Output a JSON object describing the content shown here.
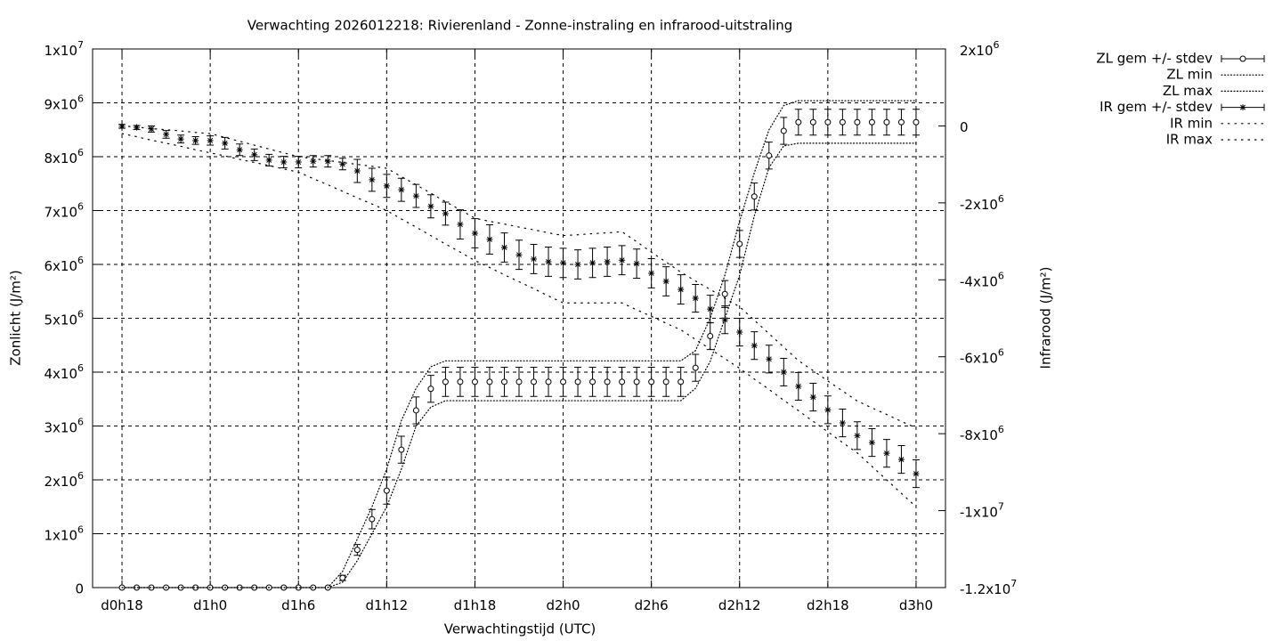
{
  "chart_data": {
    "type": "line",
    "title": "Verwachting 2026012218: Rivierenland - Zonne-instraling en infrarood-uitstraling",
    "xlabel": "Verwachtingstijd (UTC)",
    "ylabel": "Zonlicht (J/m²)",
    "y2label": "Infrarood (J/m²)",
    "grid": true,
    "legend": "outside-right",
    "xlim": [
      16,
      74
    ],
    "xticks": [
      {
        "value": 18,
        "label": "d0h18"
      },
      {
        "value": 24,
        "label": "d1h0"
      },
      {
        "value": 30,
        "label": "d1h6"
      },
      {
        "value": 36,
        "label": "d1h12"
      },
      {
        "value": 42,
        "label": "d1h18"
      },
      {
        "value": 48,
        "label": "d2h0"
      },
      {
        "value": 54,
        "label": "d2h6"
      },
      {
        "value": 60,
        "label": "d2h12"
      },
      {
        "value": 66,
        "label": "d2h18"
      },
      {
        "value": 72,
        "label": "d3h0"
      }
    ],
    "ylim": [
      0,
      10000000.0
    ],
    "yticks": [
      0,
      {
        "value": 1000000.0,
        "label": "1x10",
        "sup": "6"
      },
      {
        "value": 2000000.0,
        "label": "2x10",
        "sup": "6"
      },
      {
        "value": 3000000.0,
        "label": "3x10",
        "sup": "6"
      },
      {
        "value": 4000000.0,
        "label": "4x10",
        "sup": "6"
      },
      {
        "value": 5000000.0,
        "label": "5x10",
        "sup": "6"
      },
      {
        "value": 6000000.0,
        "label": "6x10",
        "sup": "6"
      },
      {
        "value": 7000000.0,
        "label": "7x10",
        "sup": "6"
      },
      {
        "value": 8000000.0,
        "label": "8x10",
        "sup": "6"
      },
      {
        "value": 9000000.0,
        "label": "9x10",
        "sup": "6"
      },
      {
        "value": 10000000.0,
        "label": "1x10",
        "sup": "7"
      }
    ],
    "y2lim": [
      -12000000.0,
      2000000.0
    ],
    "y2ticks": [
      {
        "value": 2000000.0,
        "label": "2x10",
        "sup": "6"
      },
      0,
      {
        "value": -2000000.0,
        "label": "-2x10",
        "sup": "6"
      },
      {
        "value": -4000000.0,
        "label": "-4x10",
        "sup": "6"
      },
      {
        "value": -6000000.0,
        "label": "-6x10",
        "sup": "6"
      },
      {
        "value": -8000000.0,
        "label": "-8x10",
        "sup": "6"
      },
      {
        "value": -10000000.0,
        "label": "-1x10",
        "sup": "7"
      },
      {
        "value": -12000000.0,
        "label": "-1.2x10",
        "sup": "7"
      }
    ],
    "x": [
      18,
      19,
      20,
      21,
      22,
      23,
      24,
      25,
      26,
      27,
      28,
      29,
      30,
      31,
      32,
      33,
      34,
      35,
      36,
      37,
      38,
      39,
      40,
      41,
      42,
      43,
      44,
      45,
      46,
      47,
      48,
      49,
      50,
      51,
      52,
      53,
      54,
      55,
      56,
      57,
      58,
      59,
      60,
      61,
      62,
      63,
      64,
      65,
      66,
      67,
      68,
      69,
      70,
      71,
      72
    ],
    "series": [
      {
        "name": "ZL gem +/- stdev",
        "color": "#000000",
        "style": "errorbars",
        "marker": "circle",
        "values": [
          0,
          0,
          0,
          0,
          0,
          0,
          0,
          0,
          0,
          0,
          0,
          0,
          0,
          0,
          0,
          180000.0,
          700000.0,
          1270000.0,
          1800000.0,
          2560000.0,
          3290000.0,
          3690000.0,
          3820000.0,
          3820000.0,
          3820000.0,
          3820000.0,
          3820000.0,
          3820000.0,
          3820000.0,
          3820000.0,
          3820000.0,
          3820000.0,
          3820000.0,
          3820000.0,
          3820000.0,
          3820000.0,
          3820000.0,
          3820000.0,
          3820000.0,
          4080000.0,
          4670000.0,
          5450000.0,
          6380000.0,
          7260000.0,
          8020000.0,
          8480000.0,
          8640000.0,
          8640000.0,
          8640000.0,
          8640000.0,
          8640000.0,
          8640000.0,
          8640000.0,
          8640000.0,
          8640000.0
        ],
        "errors": [
          0,
          0,
          0,
          0,
          0,
          0,
          0,
          0,
          0,
          0,
          0,
          0,
          0,
          0,
          0,
          50000.0,
          100000.0,
          180000.0,
          250000.0,
          250000.0,
          250000.0,
          250000.0,
          270000.0,
          270000.0,
          270000.0,
          270000.0,
          270000.0,
          270000.0,
          270000.0,
          270000.0,
          270000.0,
          270000.0,
          270000.0,
          270000.0,
          270000.0,
          270000.0,
          270000.0,
          270000.0,
          270000.0,
          250000.0,
          250000.0,
          250000.0,
          250000.0,
          250000.0,
          250000.0,
          250000.0,
          240000.0,
          240000.0,
          240000.0,
          240000.0,
          240000.0,
          240000.0,
          240000.0,
          240000.0,
          240000.0
        ]
      },
      {
        "name": "ZL min",
        "color": "#000000",
        "style": "line",
        "dash": "fine",
        "values": [
          0,
          0,
          0,
          0,
          0,
          0,
          0,
          0,
          0,
          0,
          0,
          0,
          0,
          0,
          0,
          100000.0,
          500000.0,
          1000000.0,
          1500000.0,
          2200000.0,
          3000000.0,
          3350000.0,
          3470000.0,
          3470000.0,
          3470000.0,
          3470000.0,
          3470000.0,
          3470000.0,
          3470000.0,
          3470000.0,
          3470000.0,
          3470000.0,
          3470000.0,
          3470000.0,
          3470000.0,
          3470000.0,
          3470000.0,
          3470000.0,
          3470000.0,
          3700000.0,
          4200000.0,
          5000000.0,
          5800000.0,
          6900000.0,
          7800000.0,
          8200000.0,
          8250000.0,
          8250000.0,
          8250000.0,
          8250000.0,
          8250000.0,
          8250000.0,
          8250000.0,
          8250000.0,
          8250000.0
        ]
      },
      {
        "name": "ZL max",
        "color": "#000000",
        "style": "line",
        "dash": "fine",
        "values": [
          0,
          0,
          0,
          0,
          0,
          0,
          0,
          0,
          0,
          0,
          0,
          0,
          0,
          0,
          0,
          300000.0,
          900000.0,
          1500000.0,
          2200000.0,
          3100000.0,
          3700000.0,
          4100000.0,
          4210000.0,
          4210000.0,
          4210000.0,
          4210000.0,
          4210000.0,
          4210000.0,
          4210000.0,
          4210000.0,
          4210000.0,
          4210000.0,
          4210000.0,
          4210000.0,
          4210000.0,
          4210000.0,
          4210000.0,
          4210000.0,
          4210000.0,
          4400000.0,
          5000000.0,
          5800000.0,
          6800000.0,
          7700000.0,
          8500000.0,
          8950000.0,
          9040000.0,
          9040000.0,
          9040000.0,
          9040000.0,
          9040000.0,
          9040000.0,
          9040000.0,
          9040000.0,
          9040000.0
        ]
      },
      {
        "name": "IR gem +/- stdev",
        "color": "#000000",
        "style": "errorbars",
        "marker": "star",
        "axis": "y2",
        "values": [
          -10000.0,
          -40000.0,
          -80000.0,
          -220000.0,
          -340000.0,
          -380000.0,
          -380000.0,
          -450000.0,
          -620000.0,
          -750000.0,
          -890000.0,
          -940000.0,
          -940000.0,
          -920000.0,
          -920000.0,
          -990000.0,
          -1170000.0,
          -1400000.0,
          -1560000.0,
          -1660000.0,
          -1820000.0,
          -2090000.0,
          -2280000.0,
          -2560000.0,
          -2790000.0,
          -2950000.0,
          -3160000.0,
          -3350000.0,
          -3460000.0,
          -3530000.0,
          -3560000.0,
          -3600000.0,
          -3560000.0,
          -3530000.0,
          -3490000.0,
          -3580000.0,
          -3830000.0,
          -4040000.0,
          -4250000.0,
          -4480000.0,
          -4760000.0,
          -5040000.0,
          -5360000.0,
          -5710000.0,
          -6060000.0,
          -6400000.0,
          -6770000.0,
          -7050000.0,
          -7380000.0,
          -7720000.0,
          -8050000.0,
          -8230000.0,
          -8510000.0,
          -8670000.0,
          -9040000.0
        ],
        "errors": [
          50000.0,
          50000.0,
          80000.0,
          100000.0,
          100000.0,
          100000.0,
          120000.0,
          150000.0,
          150000.0,
          150000.0,
          150000.0,
          150000.0,
          150000.0,
          150000.0,
          150000.0,
          150000.0,
          300000.0,
          300000.0,
          300000.0,
          300000.0,
          300000.0,
          300000.0,
          300000.0,
          380000.0,
          380000.0,
          380000.0,
          380000.0,
          380000.0,
          380000.0,
          380000.0,
          380000.0,
          380000.0,
          380000.0,
          380000.0,
          380000.0,
          380000.0,
          380000.0,
          380000.0,
          380000.0,
          360000.0,
          360000.0,
          360000.0,
          360000.0,
          360000.0,
          360000.0,
          360000.0,
          360000.0,
          360000.0,
          360000.0,
          360000.0,
          360000.0,
          360000.0,
          360000.0,
          360000.0,
          360000.0
        ]
      },
      {
        "name": "IR min",
        "color": "#000000",
        "style": "line",
        "dash": "sparse",
        "axis": "y2",
        "values": [
          -200000.0,
          -280000.0,
          -370000.0,
          -450000.0,
          -530000.0,
          -620000.0,
          -700000.0,
          -780000.0,
          -870000.0,
          -950000.0,
          -1030000.0,
          -1120000.0,
          -1200000.0,
          -1370000.0,
          -1530000.0,
          -1700000.0,
          -1870000.0,
          -2030000.0,
          -2200000.0,
          -2420000.0,
          -2630000.0,
          -2850000.0,
          -3070000.0,
          -3280000.0,
          -3500000.0,
          -3680000.0,
          -3870000.0,
          -4050000.0,
          -4230000.0,
          -4420000.0,
          -4600000.0,
          -4600000.0,
          -4600000.0,
          -4600000.0,
          -4600000.0,
          -4780000.0,
          -4950000.0,
          -5130000.0,
          -5300000.0,
          -5550000.0,
          -5800000.0,
          -6050000.0,
          -6300000.0,
          -6580000.0,
          -6850000.0,
          -7130000.0,
          -7400000.0,
          -7680000.0,
          -7950000.0,
          -8230000.0,
          -8500000.0,
          -8850000.0,
          -9200000.0,
          -9550000.0,
          -9900000.0
        ]
      },
      {
        "name": "IR max",
        "color": "#000000",
        "style": "line",
        "dash": "sparse",
        "axis": "y2",
        "values": [
          0,
          -30000.0,
          -70000.0,
          -100000.0,
          -130000.0,
          -170000.0,
          -200000.0,
          -300000.0,
          -400000.0,
          -500000.0,
          -600000.0,
          -700000.0,
          -800000.0,
          -850000.0,
          -900000.0,
          -950000.0,
          -1000000.0,
          -1050000.0,
          -1100000.0,
          -1320000.0,
          -1530000.0,
          -1750000.0,
          -1970000.0,
          -2180000.0,
          -2400000.0,
          -2480000.0,
          -2550000.0,
          -2630000.0,
          -2700000.0,
          -2780000.0,
          -2850000.0,
          -2830000.0,
          -2800000.0,
          -2780000.0,
          -2750000.0,
          -3010000.0,
          -3280000.0,
          -3540000.0,
          -3800000.0,
          -4030000.0,
          -4250000.0,
          -4480000.0,
          -4700000.0,
          -5050000.0,
          -5400000.0,
          -5750000.0,
          -6100000.0,
          -6360000.0,
          -6630000.0,
          -6890000.0,
          -7150000.0,
          -7330000.0,
          -7500000.0,
          -7680000.0,
          -7850000.0
        ]
      }
    ]
  }
}
